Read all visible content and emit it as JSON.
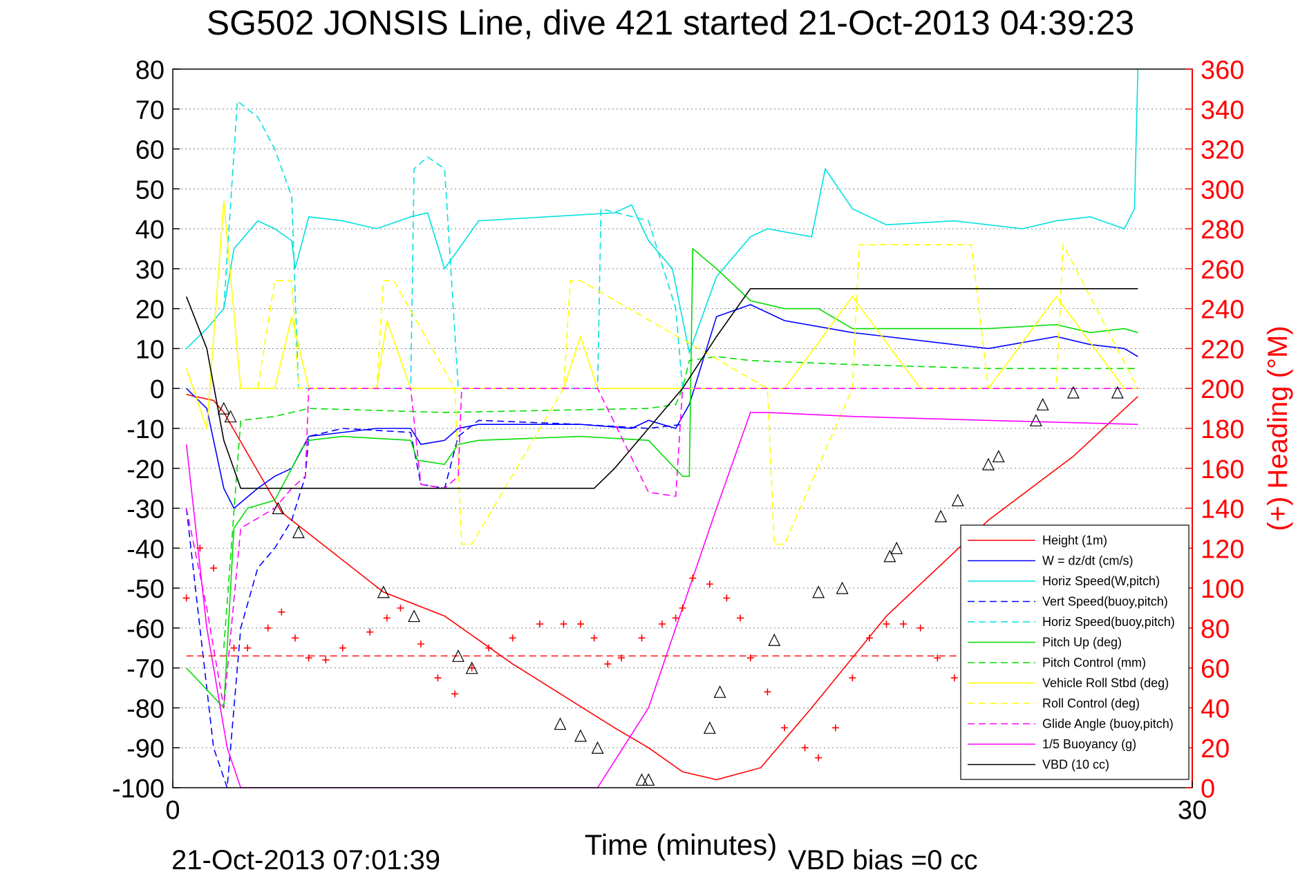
{
  "chart_data": {
    "type": "line",
    "title": "SG502 JONSIS Line, dive 421 started 21-Oct-2013 04:39:23",
    "xlabel": "Time (minutes)",
    "ylabel_right": "(+) Heading (°M)",
    "footer_left": "21-Oct-2013 07:01:39",
    "footer_right": "VBD bias =0 cc",
    "xlim": [
      0,
      30
    ],
    "ylim": [
      -100,
      80
    ],
    "ylim_right": [
      0,
      360
    ],
    "xticks": [
      0,
      30
    ],
    "yticks": [
      80,
      70,
      60,
      50,
      40,
      30,
      20,
      10,
      0,
      -10,
      -20,
      -30,
      -40,
      -50,
      -60,
      -70,
      -80,
      -90,
      -100
    ],
    "yticks_right": [
      360,
      340,
      320,
      300,
      280,
      260,
      240,
      220,
      200,
      180,
      160,
      140,
      120,
      100,
      80,
      60,
      40,
      20,
      0
    ],
    "grid": "horizontal dotted",
    "legend_position": "bottom-right",
    "colors": {
      "axis": "#000000",
      "right_axis": "#ff0000",
      "grid": "#808080"
    },
    "series": [
      {
        "name": "Height (1m)",
        "color": "#ff0000",
        "style": "solid",
        "x": [
          0.4,
          1.2,
          1.5,
          3.2,
          6.2,
          8.0,
          10.0,
          13.0,
          14.0,
          15.0,
          16.0,
          17.3,
          18.8,
          21.0,
          24.0,
          26.5,
          28.4
        ],
        "y": [
          -1.5,
          -3,
          -6,
          -31,
          -51,
          -57,
          -69,
          -85,
          -90,
          -96,
          -98,
          -95,
          -80,
          -57,
          -33,
          -17,
          -2
        ]
      },
      {
        "name": "W = dz/dt (cm/s)",
        "color": "#0000ff",
        "style": "solid",
        "x": [
          0.4,
          1.0,
          1.5,
          1.8,
          2.5,
          3.0,
          3.5,
          4.0,
          6.0,
          7.0,
          7.3,
          8.0,
          8.4,
          9.0,
          12.0,
          13.5,
          14.0,
          14.8,
          15.2,
          16.0,
          17.0,
          18.0,
          20.0,
          22.0,
          24.0,
          26.0,
          27.0,
          28.0,
          28.4
        ],
        "y": [
          0,
          -5,
          -25,
          -30,
          -25,
          -22,
          -20,
          -12,
          -10,
          -10,
          -14,
          -13,
          -10,
          -9,
          -9,
          -10,
          -8,
          -10,
          -4,
          18,
          21,
          17,
          14,
          12,
          10,
          13,
          11,
          10,
          8
        ]
      },
      {
        "name": "Horiz Speed(W,pitch)",
        "color": "#00e0e0",
        "style": "solid",
        "x": [
          0.4,
          1.0,
          1.5,
          1.8,
          2.5,
          3.0,
          3.5,
          3.6,
          4.0,
          5.0,
          6.0,
          7.0,
          7.5,
          8.0,
          9.0,
          11.0,
          13.0,
          13.5,
          14.0,
          14.7,
          15.2,
          16.0,
          17.0,
          17.5,
          18.8,
          19.2,
          20.0,
          21.0,
          23.0,
          25.0,
          26.0,
          27.0,
          28.0,
          28.3,
          28.4
        ],
        "y": [
          10,
          15,
          20,
          35,
          42,
          40,
          37,
          30,
          43,
          42,
          40,
          43,
          44,
          30,
          42,
          43,
          44,
          46,
          37,
          30,
          9,
          28,
          38,
          40,
          38,
          55,
          45,
          41,
          42,
          40,
          42,
          43,
          40,
          45,
          80
        ]
      },
      {
        "name": "Vert Speed(buoy,pitch)",
        "color": "#0000ff",
        "style": "dashed",
        "x": [
          0.4,
          0.8,
          1.2,
          1.6,
          2.0,
          2.5,
          3.0,
          3.5,
          3.9,
          4.0,
          5.0,
          7.0,
          7.3,
          8.0,
          8.4,
          9.0,
          12.0,
          14.0,
          15.0
        ],
        "y": [
          -30,
          -60,
          -90,
          -100,
          -60,
          -45,
          -40,
          -33,
          -22,
          -12,
          -10,
          -11,
          -24,
          -25,
          -12,
          -8,
          -9,
          -10,
          -9
        ]
      },
      {
        "name": "Horiz Speed(buoy,pitch)",
        "color": "#00e0e0",
        "style": "dashed",
        "x": [
          1.5,
          1.9,
          2.5,
          3.0,
          3.5,
          3.7,
          3.9,
          5.0,
          5.5,
          6.5,
          7.0,
          7.1,
          7.5,
          8.0,
          8.4,
          8.5,
          12.5,
          12.6,
          14.0,
          14.8,
          15.0
        ],
        "y": [
          20,
          72,
          68,
          60,
          48,
          0,
          0,
          0,
          0,
          0,
          0,
          55,
          58,
          55,
          0,
          0,
          0,
          45,
          42,
          20,
          0
        ]
      },
      {
        "name": "Pitch Up (deg)",
        "color": "#00dd00",
        "style": "solid",
        "x": [
          0.4,
          1.5,
          1.8,
          2.2,
          3.0,
          3.5,
          3.8,
          4.0,
          5.0,
          7.0,
          7.2,
          8.0,
          8.4,
          9.0,
          12.0,
          14.0,
          15.0,
          15.2,
          15.3,
          16.0,
          17.0,
          18.0,
          19.0,
          20.0,
          22.0,
          24.0,
          26.0,
          27.0,
          28.0,
          28.4
        ],
        "y": [
          -70,
          -80,
          -35,
          -30,
          -28,
          -20,
          -15,
          -13,
          -12,
          -13,
          -18,
          -19,
          -14,
          -13,
          -12,
          -13,
          -22,
          -22,
          35,
          30,
          22,
          20,
          20,
          15,
          15,
          15,
          16,
          14,
          15,
          14
        ]
      },
      {
        "name": "Pitch Control (mm)",
        "color": "#00dd00",
        "style": "dashed",
        "x": [
          1.5,
          2.0,
          3.0,
          4.0,
          8.0,
          14.0,
          14.8,
          15.0,
          15.2,
          16.0,
          17.0,
          20.0,
          24.0,
          28.4
        ],
        "y": [
          -65,
          -8,
          -7,
          -5,
          -6,
          -5,
          -4,
          0,
          7,
          8,
          7,
          6,
          5,
          5
        ]
      },
      {
        "name": "Vehicle Roll Stbd (deg)",
        "color": "#ffff00",
        "style": "solid",
        "x": [
          0.4,
          1.0,
          1.5,
          2.0,
          3.0,
          3.5,
          4.0,
          5.0,
          6.0,
          6.3,
          7.0,
          8.0,
          8.5,
          9.0,
          11.5,
          12.0,
          12.5,
          14.0,
          15.0,
          17.0,
          18.0,
          20.0,
          22.0,
          24.0,
          26.0,
          28.0,
          28.4
        ],
        "y": [
          5,
          -10,
          47,
          0,
          0,
          18,
          0,
          0,
          0,
          17,
          0,
          0,
          0,
          0,
          0,
          13,
          0,
          0,
          0,
          0,
          0,
          23,
          0,
          0,
          23,
          0,
          0
        ]
      },
      {
        "name": "Roll Control (deg)",
        "color": "#ffff00",
        "style": "dashed",
        "x": [
          2.5,
          3.0,
          3.5,
          3.7,
          6.0,
          6.2,
          6.5,
          8.3,
          8.5,
          8.8,
          11.5,
          11.7,
          12.0,
          17.5,
          17.7,
          18.0,
          20.0,
          20.2,
          23.5,
          24.0,
          26.0,
          26.2,
          28.4
        ],
        "y": [
          0,
          27,
          27,
          0,
          0,
          27,
          27,
          0,
          -39,
          -39,
          0,
          27,
          27,
          0,
          -39,
          -39,
          0,
          36,
          36,
          0,
          0,
          36,
          0
        ]
      },
      {
        "name": "Glide Angle (buoy,pitch)",
        "color": "#ff00ff",
        "style": "dashed",
        "x": [
          0.4,
          1.0,
          1.5,
          2.0,
          3.0,
          3.5,
          3.9,
          4.0,
          7.0,
          7.3,
          8.0,
          8.4,
          8.5,
          12.5,
          14.0,
          14.8,
          15.0,
          28.4
        ],
        "y": [
          -30,
          -55,
          -80,
          -35,
          -30,
          -25,
          -22,
          0,
          0,
          -24,
          -25,
          -22,
          0,
          0,
          -26,
          -27,
          0,
          0
        ]
      },
      {
        "name": "1/5 Buoyancy (g)",
        "color": "#ff00ff",
        "style": "solid",
        "x": [
          0.4,
          1.0,
          1.6,
          2.0,
          12.5,
          14.0,
          15.0,
          16.0,
          17.0,
          17.5,
          20.0,
          24.0,
          28.4
        ],
        "y": [
          -14,
          -60,
          -90,
          -100,
          -100,
          -80,
          -55,
          -30,
          -6,
          -6,
          -7,
          -8,
          -9
        ]
      },
      {
        "name": "VBD (10 cc)",
        "color": "#000000",
        "style": "solid",
        "x": [
          0.4,
          1.0,
          1.5,
          2.0,
          12.4,
          13.0,
          15.0,
          16.0,
          17.0,
          17.5,
          28.4
        ],
        "y": [
          23,
          10,
          -13,
          -25,
          -25,
          -20,
          0,
          13,
          25,
          25,
          25
        ]
      }
    ],
    "heading_series": {
      "name": "Heading (°M)",
      "color": "#ff0000",
      "marker": "+",
      "x": [
        0.4,
        0.8,
        1.2,
        1.8,
        2.2,
        2.8,
        3.2,
        3.6,
        4.0,
        4.5,
        5.0,
        5.8,
        6.3,
        6.7,
        7.3,
        7.8,
        8.3,
        8.8,
        9.3,
        10.0,
        10.8,
        11.5,
        12.0,
        12.4,
        12.8,
        13.2,
        13.8,
        14.4,
        14.8,
        15.0,
        15.3,
        15.8,
        16.3,
        16.7,
        17.0,
        17.5,
        18.0,
        18.6,
        19.0,
        19.5,
        20.0,
        20.5,
        21.0,
        21.5,
        22.0,
        22.5,
        23.0,
        23.5,
        24.0,
        24.5,
        25.0,
        25.5,
        26.0
      ],
      "y": [
        95,
        120,
        110,
        70,
        70,
        80,
        88,
        75,
        65,
        64,
        70,
        78,
        85,
        90,
        72,
        55,
        47,
        60,
        70,
        75,
        82,
        82,
        82,
        75,
        62,
        65,
        75,
        82,
        85,
        90,
        105,
        102,
        95,
        85,
        65,
        48,
        30,
        20,
        15,
        30,
        55,
        75,
        82,
        82,
        80,
        65,
        55,
        50,
        47,
        50,
        70,
        85,
        88
      ]
    },
    "reference_line": {
      "color": "#ff0000",
      "style": "dashed",
      "y_heading": 66
    },
    "markers_triangle": {
      "x": [
        1.5,
        1.7,
        3.1,
        3.7,
        6.2,
        7.1,
        8.4,
        8.8,
        11.4,
        12.0,
        12.5,
        13.8,
        14.0,
        15.8,
        16.1,
        17.7,
        19.0,
        19.7,
        21.1,
        21.3,
        22.6,
        23.1,
        24.0,
        24.3,
        25.4,
        25.6,
        26.5,
        27.8
      ],
      "y": [
        -5,
        -7,
        -30,
        -36,
        -51,
        -57,
        -67,
        -70,
        -84,
        -87,
        -90,
        -98,
        -98,
        -85,
        -76,
        -63,
        -51,
        -50,
        -42,
        -40,
        -32,
        -28,
        -19,
        -17,
        -8,
        -4,
        -1,
        -1
      ]
    }
  }
}
